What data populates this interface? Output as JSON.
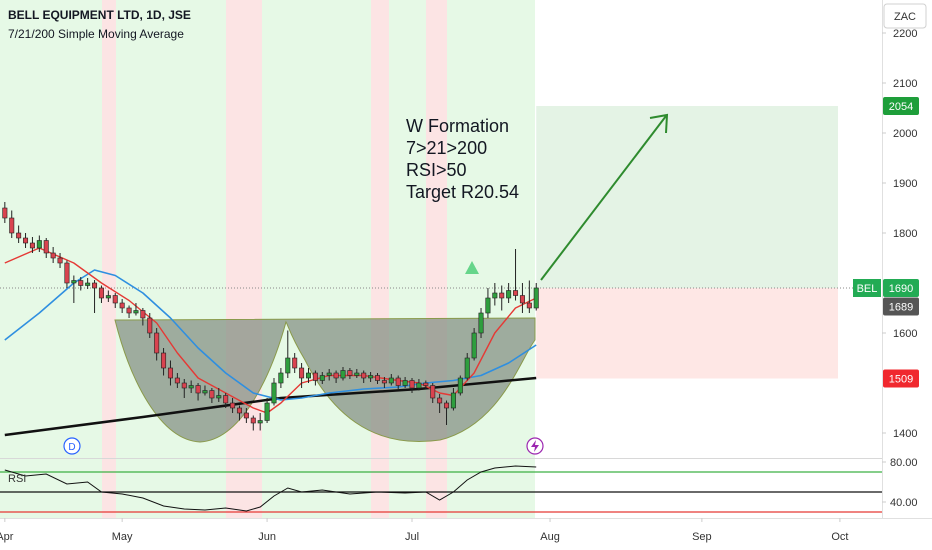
{
  "chart_data": {
    "type": "candlestick",
    "title": "BELL EQUIPMENT LTD, 1D, JSE",
    "subtitle": "7/21/200 Simple Moving Average",
    "currency": "ZAC",
    "up_color": "#2e9e3e",
    "down_color": "#d9434f",
    "x": [
      0,
      1,
      2,
      3,
      4,
      5,
      6,
      7,
      8,
      9,
      10,
      11,
      12,
      13,
      14,
      15,
      16,
      17,
      18,
      19,
      20,
      21,
      22,
      23,
      24,
      25,
      26,
      27,
      28,
      29,
      30,
      31,
      32,
      33,
      34,
      35,
      36,
      37,
      38,
      39,
      40,
      41,
      42,
      43,
      44,
      45,
      46,
      47,
      48,
      49,
      50,
      51,
      52,
      53,
      54,
      55,
      56,
      57,
      58,
      59,
      60,
      61,
      62,
      63,
      64,
      65,
      66,
      67,
      68,
      69,
      70,
      71,
      72,
      73,
      74,
      75,
      76,
      77
    ],
    "ohlc": [
      [
        1850,
        1862,
        1820,
        1830
      ],
      [
        1830,
        1845,
        1790,
        1800
      ],
      [
        1800,
        1815,
        1780,
        1790
      ],
      [
        1790,
        1800,
        1770,
        1780
      ],
      [
        1780,
        1792,
        1760,
        1770
      ],
      [
        1770,
        1795,
        1762,
        1785
      ],
      [
        1785,
        1790,
        1750,
        1760
      ],
      [
        1760,
        1772,
        1740,
        1750
      ],
      [
        1750,
        1760,
        1730,
        1740
      ],
      [
        1740,
        1745,
        1690,
        1700
      ],
      [
        1700,
        1715,
        1660,
        1705
      ],
      [
        1705,
        1712,
        1685,
        1695
      ],
      [
        1695,
        1710,
        1688,
        1700
      ],
      [
        1700,
        1706,
        1640,
        1690
      ],
      [
        1690,
        1695,
        1660,
        1670
      ],
      [
        1670,
        1685,
        1662,
        1675
      ],
      [
        1675,
        1680,
        1650,
        1660
      ],
      [
        1660,
        1668,
        1640,
        1650
      ],
      [
        1650,
        1655,
        1630,
        1640
      ],
      [
        1640,
        1660,
        1635,
        1645
      ],
      [
        1645,
        1650,
        1615,
        1630
      ],
      [
        1630,
        1640,
        1590,
        1600
      ],
      [
        1600,
        1610,
        1545,
        1560
      ],
      [
        1560,
        1570,
        1515,
        1530
      ],
      [
        1530,
        1545,
        1495,
        1510
      ],
      [
        1510,
        1520,
        1490,
        1500
      ],
      [
        1500,
        1508,
        1470,
        1490
      ],
      [
        1490,
        1505,
        1480,
        1495
      ],
      [
        1495,
        1500,
        1465,
        1480
      ],
      [
        1480,
        1495,
        1475,
        1485
      ],
      [
        1485,
        1490,
        1460,
        1470
      ],
      [
        1470,
        1490,
        1462,
        1475
      ],
      [
        1475,
        1480,
        1450,
        1460
      ],
      [
        1460,
        1470,
        1440,
        1450
      ],
      [
        1450,
        1455,
        1425,
        1440
      ],
      [
        1440,
        1450,
        1420,
        1430
      ],
      [
        1430,
        1435,
        1405,
        1420
      ],
      [
        1420,
        1440,
        1405,
        1425
      ],
      [
        1425,
        1470,
        1420,
        1460
      ],
      [
        1460,
        1510,
        1455,
        1500
      ],
      [
        1500,
        1530,
        1490,
        1520
      ],
      [
        1520,
        1605,
        1510,
        1550
      ],
      [
        1550,
        1560,
        1520,
        1530
      ],
      [
        1530,
        1540,
        1490,
        1510
      ],
      [
        1510,
        1530,
        1500,
        1520
      ],
      [
        1520,
        1525,
        1495,
        1505
      ],
      [
        1505,
        1522,
        1498,
        1515
      ],
      [
        1515,
        1528,
        1505,
        1520
      ],
      [
        1520,
        1525,
        1500,
        1510
      ],
      [
        1510,
        1532,
        1505,
        1525
      ],
      [
        1525,
        1530,
        1508,
        1515
      ],
      [
        1515,
        1528,
        1510,
        1520
      ],
      [
        1520,
        1525,
        1500,
        1510
      ],
      [
        1510,
        1522,
        1502,
        1515
      ],
      [
        1515,
        1520,
        1498,
        1505
      ],
      [
        1505,
        1512,
        1490,
        1500
      ],
      [
        1500,
        1518,
        1495,
        1510
      ],
      [
        1510,
        1515,
        1488,
        1495
      ],
      [
        1495,
        1512,
        1490,
        1505
      ],
      [
        1505,
        1510,
        1480,
        1490
      ],
      [
        1490,
        1508,
        1485,
        1500
      ],
      [
        1500,
        1505,
        1488,
        1495
      ],
      [
        1495,
        1500,
        1460,
        1470
      ],
      [
        1470,
        1478,
        1440,
        1460
      ],
      [
        1460,
        1465,
        1416,
        1450
      ],
      [
        1450,
        1490,
        1445,
        1480
      ],
      [
        1480,
        1515,
        1475,
        1510
      ],
      [
        1510,
        1560,
        1505,
        1550
      ],
      [
        1550,
        1610,
        1545,
        1600
      ],
      [
        1600,
        1650,
        1590,
        1640
      ],
      [
        1640,
        1690,
        1630,
        1670
      ],
      [
        1670,
        1700,
        1655,
        1680
      ],
      [
        1680,
        1695,
        1645,
        1670
      ],
      [
        1670,
        1700,
        1660,
        1685
      ],
      [
        1685,
        1768,
        1665,
        1675
      ],
      [
        1675,
        1700,
        1640,
        1660
      ],
      [
        1660,
        1705,
        1640,
        1650
      ],
      [
        1650,
        1700,
        1645,
        1690
      ]
    ],
    "xlim": [
      -0.7,
      127.1
    ],
    "xticks": [
      {
        "value": 0,
        "label": "Apr"
      },
      {
        "value": 17,
        "label": "May"
      },
      {
        "value": 38,
        "label": "Jun"
      },
      {
        "value": 59,
        "label": "Jul"
      },
      {
        "value": 79,
        "label": "Aug"
      },
      {
        "value": 101,
        "label": "Sep"
      },
      {
        "value": 121,
        "label": "Oct"
      }
    ],
    "ylim": [
      1350,
      2266
    ],
    "yticks": [
      1400,
      1600,
      1800,
      1900,
      2000,
      2100,
      2200
    ],
    "lines": [
      {
        "color": "#111111",
        "width": 2.5,
        "x": [
          0,
          20,
          40,
          60,
          77
        ],
        "values": [
          1396,
          1432,
          1470,
          1488,
          1510
        ]
      },
      {
        "color": "#2f8fe0",
        "width": 1.6,
        "x": [
          0,
          5,
          10,
          13,
          16,
          20,
          24,
          28,
          32,
          36,
          40,
          43,
          47,
          52,
          57,
          61,
          65,
          69,
          73,
          77
        ],
        "values": [
          1586,
          1640,
          1700,
          1726,
          1715,
          1680,
          1630,
          1570,
          1520,
          1480,
          1466,
          1470,
          1480,
          1488,
          1492,
          1500,
          1505,
          1515,
          1540,
          1576
        ]
      },
      {
        "color": "#e53935",
        "width": 1.4,
        "x": [
          0,
          5,
          10,
          14,
          18,
          22,
          25,
          28,
          32,
          36,
          38,
          40,
          43,
          47,
          52,
          57,
          60,
          63,
          65,
          68,
          71,
          74,
          77
        ],
        "values": [
          1740,
          1770,
          1740,
          1700,
          1665,
          1620,
          1560,
          1510,
          1480,
          1450,
          1440,
          1460,
          1500,
          1515,
          1515,
          1505,
          1500,
          1480,
          1475,
          1520,
          1600,
          1650,
          1670
        ]
      }
    ],
    "annotation": [
      "W Formation",
      "7>21>200",
      "RSI>50",
      "Target R20.54"
    ],
    "symbol": "BEL",
    "price_labels": [
      {
        "value": 2054,
        "color": "#1e9e3a"
      },
      {
        "value": 1690,
        "color": "#22ab54"
      },
      {
        "value": 1689,
        "color": "#555555"
      },
      {
        "value": 1509,
        "color": "#f0282e"
      }
    ],
    "rsi": {
      "label": "RSI",
      "ylim": [
        24,
        84
      ],
      "yticks": [
        {
          "value": 80,
          "label": "80.00"
        },
        {
          "value": 40,
          "label": "40.00"
        }
      ],
      "levels": [
        {
          "value": 70,
          "color": "#3cb043"
        },
        {
          "value": 50,
          "color": "#111111"
        },
        {
          "value": 30,
          "color": "#e53935"
        }
      ],
      "x": [
        0,
        3,
        6,
        9,
        12,
        14,
        17,
        20,
        23,
        26,
        29,
        32,
        35,
        37,
        39,
        41,
        43,
        46,
        50,
        54,
        58,
        61,
        63,
        65,
        67,
        69,
        71,
        74,
        77
      ],
      "values": [
        72,
        66,
        68,
        58,
        60,
        50,
        48,
        44,
        36,
        33,
        32,
        34,
        31,
        35,
        46,
        54,
        50,
        52,
        48,
        50,
        49,
        50,
        42,
        50,
        62,
        70,
        74,
        76,
        75
      ]
    }
  }
}
